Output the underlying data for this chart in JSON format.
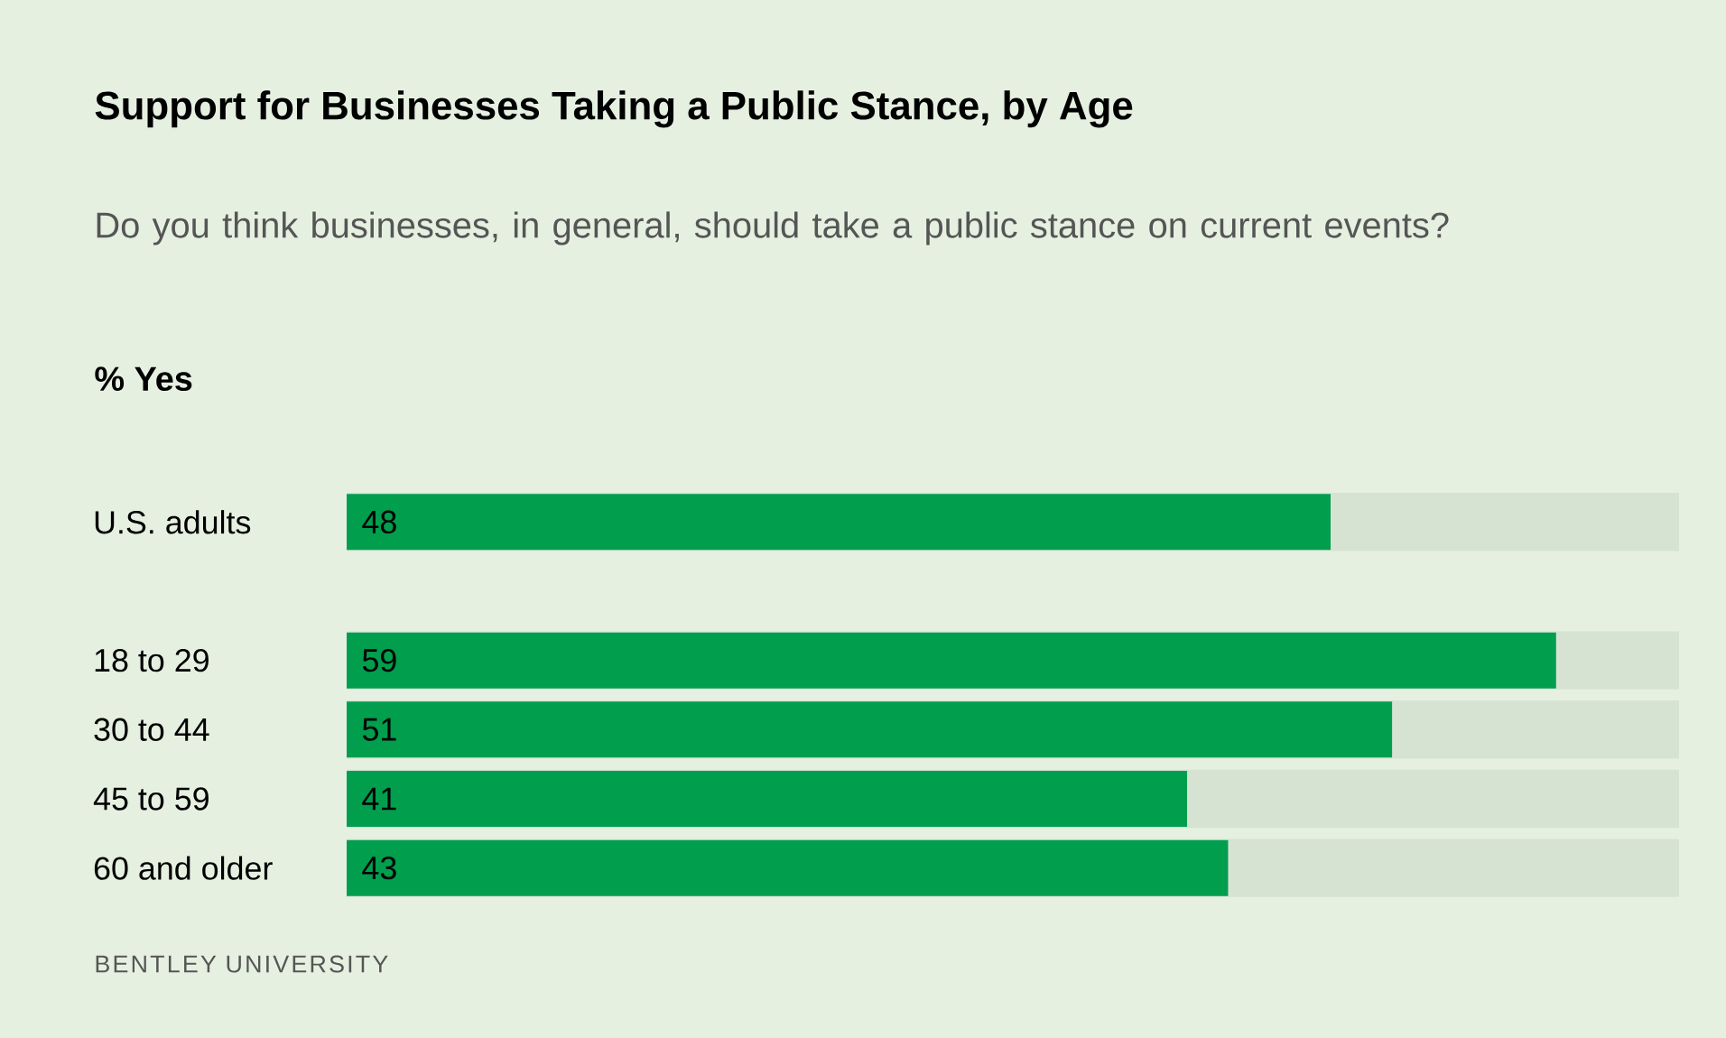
{
  "chart_data": {
    "type": "bar",
    "orientation": "horizontal",
    "title": "Support for Businesses Taking a Public Stance, by Age",
    "subtitle": "Do you think businesses, in general, should take a public stance on current events?",
    "xlabel": "% Yes",
    "categories": [
      "U.S. adults",
      null,
      "18 to 29",
      "30 to 44",
      "45 to 59",
      "60 and older"
    ],
    "values": [
      48,
      null,
      59,
      51,
      41,
      43
    ],
    "color": "#009e4d",
    "xlim": [
      0,
      65
    ],
    "data_labels": true,
    "annotations": [
      "BENTLEY UNIVERSITY"
    ]
  }
}
